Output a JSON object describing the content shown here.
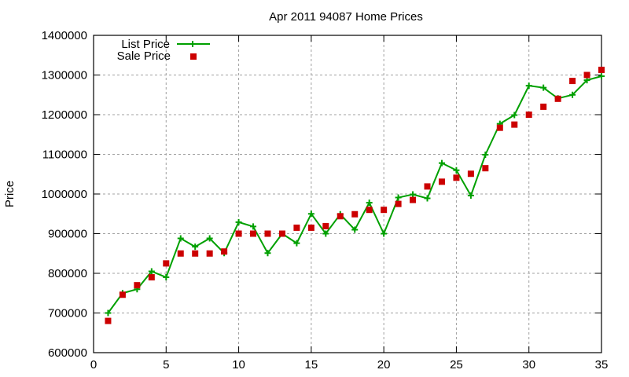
{
  "chart_data": {
    "type": "line",
    "title": "Apr 2011 94087 Home Prices",
    "xlabel": "",
    "ylabel": "Price",
    "xlim": [
      0,
      35
    ],
    "ylim": [
      600000,
      1400000
    ],
    "xticks": [
      0,
      5,
      10,
      15,
      20,
      25,
      30,
      35
    ],
    "yticks": [
      600000,
      700000,
      800000,
      900000,
      1000000,
      1100000,
      1200000,
      1300000,
      1400000
    ],
    "grid": true,
    "legend_position": "top-left",
    "x": [
      1,
      2,
      3,
      4,
      5,
      6,
      7,
      8,
      9,
      10,
      11,
      12,
      13,
      14,
      15,
      16,
      17,
      18,
      19,
      20,
      21,
      22,
      23,
      24,
      25,
      26,
      27,
      28,
      29,
      30,
      31,
      32,
      33,
      34,
      35
    ],
    "series": [
      {
        "name": "List Price",
        "style": "linespoints",
        "color": "#00a000",
        "marker": "plus",
        "values": [
          700000,
          750000,
          760000,
          805000,
          790000,
          888000,
          867000,
          888000,
          851000,
          929000,
          918000,
          851000,
          900000,
          876000,
          950000,
          900000,
          949000,
          910000,
          978000,
          900000,
          991000,
          999000,
          989000,
          1078000,
          1060000,
          996000,
          1099000,
          1177000,
          1199000,
          1273000,
          1268000,
          1241000,
          1250000,
          1287000,
          1297000
        ]
      },
      {
        "name": "Sale Price",
        "style": "points",
        "color": "#cc0000",
        "marker": "square",
        "values": [
          680000,
          746000,
          770000,
          790000,
          825000,
          850000,
          850000,
          850000,
          855000,
          900000,
          900000,
          900000,
          900000,
          915000,
          915000,
          919000,
          944000,
          949000,
          960000,
          960000,
          975000,
          985000,
          1019000,
          1031000,
          1041000,
          1051000,
          1065000,
          1167000,
          1175000,
          1200000,
          1220000,
          1240000,
          1285000,
          1300000,
          1313000
        ]
      }
    ]
  },
  "labels": {
    "title": "Apr 2011 94087 Home Prices",
    "ylabel": "Price",
    "legend_list": "List Price",
    "legend_sale": "Sale Price"
  }
}
